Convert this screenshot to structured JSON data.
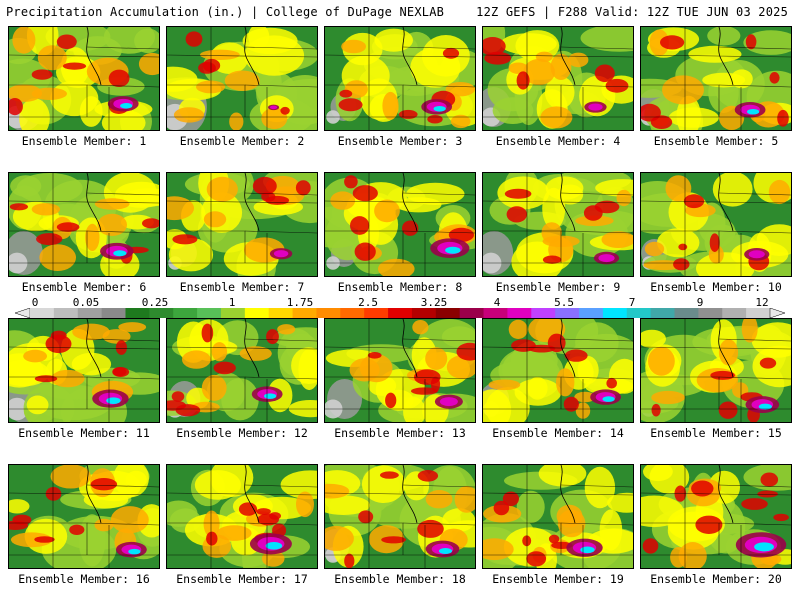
{
  "header": {
    "title": "Precipitation Accumulation (in.) | College of DuPage NEXLAB",
    "run_info": "12Z GEFS | F288 Valid: 12Z TUE JUN 03 2025"
  },
  "panel_label_prefix": "Ensemble Member: ",
  "members": [
    {
      "id": 1,
      "label": "Ensemble Member: 1",
      "heavy": 0.55,
      "dry": 0.35
    },
    {
      "id": 2,
      "label": "Ensemble Member: 2",
      "heavy": 0.2,
      "dry": 0.45
    },
    {
      "id": 3,
      "label": "Ensemble Member: 3",
      "heavy": 0.55,
      "dry": 0.1
    },
    {
      "id": 4,
      "label": "Ensemble Member: 4",
      "heavy": 0.4,
      "dry": 0.25
    },
    {
      "id": 5,
      "label": "Ensemble Member: 5",
      "heavy": 0.55,
      "dry": 0.2
    },
    {
      "id": 6,
      "label": "Ensemble Member: 6",
      "heavy": 0.6,
      "dry": 0.3
    },
    {
      "id": 7,
      "label": "Ensemble Member: 7",
      "heavy": 0.4,
      "dry": 0.1
    },
    {
      "id": 8,
      "label": "Ensemble Member: 8",
      "heavy": 0.7,
      "dry": 0.1
    },
    {
      "id": 9,
      "label": "Ensemble Member: 9",
      "heavy": 0.45,
      "dry": 0.3
    },
    {
      "id": 10,
      "label": "Ensemble Member: 10",
      "heavy": 0.45,
      "dry": 0.1
    },
    {
      "id": 11,
      "label": "Ensemble Member: 11",
      "heavy": 0.65,
      "dry": 0.35
    },
    {
      "id": 12,
      "label": "Ensemble Member: 12",
      "heavy": 0.55,
      "dry": 0.2
    },
    {
      "id": 13,
      "label": "Ensemble Member: 13",
      "heavy": 0.5,
      "dry": 0.25
    },
    {
      "id": 14,
      "label": "Ensemble Member: 14",
      "heavy": 0.55,
      "dry": 0.15
    },
    {
      "id": 15,
      "label": "Ensemble Member: 15",
      "heavy": 0.6,
      "dry": 0.15
    },
    {
      "id": 16,
      "label": "Ensemble Member: 16",
      "heavy": 0.55,
      "dry": 0.05
    },
    {
      "id": 17,
      "label": "Ensemble Member: 17",
      "heavy": 0.75,
      "dry": 0.05
    },
    {
      "id": 18,
      "label": "Ensemble Member: 18",
      "heavy": 0.6,
      "dry": 0.15
    },
    {
      "id": 19,
      "label": "Ensemble Member: 19",
      "heavy": 0.65,
      "dry": 0.05
    },
    {
      "id": 20,
      "label": "Ensemble Member: 20",
      "heavy": 0.9,
      "dry": 0.05
    }
  ],
  "colorbar": {
    "ticks": [
      "0",
      "0.05",
      "0.25",
      "1",
      "1.75",
      "2.5",
      "3.25",
      "4",
      "5.5",
      "7",
      "9",
      "12"
    ],
    "colors": [
      "#d8d8d8",
      "#bdbdbd",
      "#a0a0a0",
      "#8a8a8a",
      "#1e7a1e",
      "#2e8b2e",
      "#3da63d",
      "#58c058",
      "#9ad230",
      "#ffff00",
      "#ffd700",
      "#ffaa00",
      "#ff8c00",
      "#ff6a00",
      "#ff3c00",
      "#e00000",
      "#b40000",
      "#8b0000",
      "#9b004a",
      "#c8007a",
      "#e000c0",
      "#c040ff",
      "#8a70ff",
      "#5aa0ff",
      "#00e5ff",
      "#22c8c8",
      "#40a8a8",
      "#6a8c8c",
      "#909090",
      "#b0b0b0",
      "#d0d0d0"
    ]
  }
}
